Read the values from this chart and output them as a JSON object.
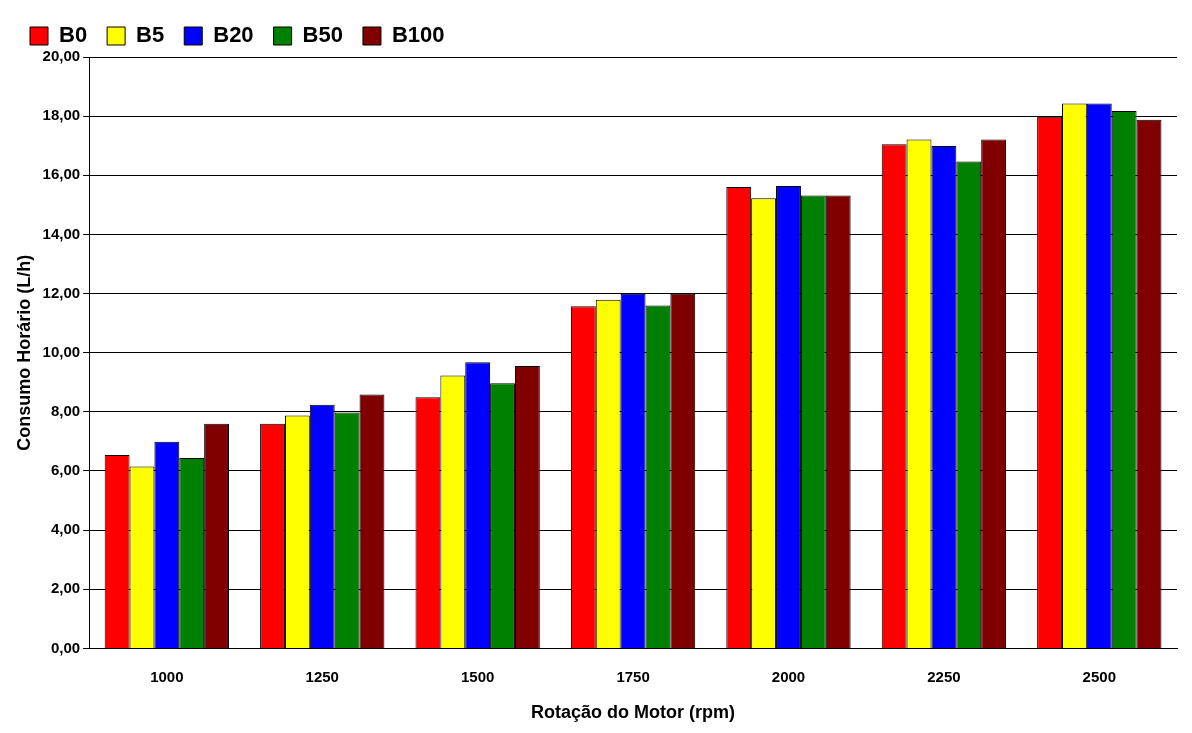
{
  "chart_data": {
    "type": "bar",
    "xlabel": "Rotação do Motor (rpm)",
    "ylabel": "Consumo Horário (L/h)",
    "categories": [
      "1000",
      "1250",
      "1500",
      "1750",
      "2000",
      "2250",
      "2500"
    ],
    "series": [
      {
        "name": "B0",
        "color": "#ff0000",
        "values": [
          6.54,
          7.6,
          8.49,
          11.57,
          15.6,
          17.05,
          17.98
        ]
      },
      {
        "name": "B5",
        "color": "#ffff00",
        "values": [
          6.15,
          7.88,
          9.23,
          11.79,
          15.22,
          17.21,
          18.43
        ]
      },
      {
        "name": "B20",
        "color": "#0000ff",
        "values": [
          6.99,
          8.24,
          9.68,
          11.99,
          15.64,
          16.99,
          18.43
        ]
      },
      {
        "name": "B50",
        "color": "#008000",
        "values": [
          6.44,
          7.98,
          8.97,
          11.6,
          15.32,
          16.47,
          18.17
        ]
      },
      {
        "name": "B100",
        "color": "#800000",
        "values": [
          7.6,
          8.59,
          9.55,
          11.99,
          15.32,
          17.21,
          17.88
        ]
      }
    ],
    "ylim": [
      0,
      20
    ],
    "yticks": [
      {
        "value": 0,
        "label": "0,00"
      },
      {
        "value": 2,
        "label": "2,00"
      },
      {
        "value": 4,
        "label": "4,00"
      },
      {
        "value": 6,
        "label": "6,00"
      },
      {
        "value": 8,
        "label": "8,00"
      },
      {
        "value": 10,
        "label": "10,00"
      },
      {
        "value": 12,
        "label": "12,00"
      },
      {
        "value": 14,
        "label": "14,00"
      },
      {
        "value": 16,
        "label": "16,00"
      },
      {
        "value": 18,
        "label": "18,00"
      },
      {
        "value": 20,
        "label": "20,00"
      }
    ],
    "grid": "y",
    "legend": "top left"
  }
}
